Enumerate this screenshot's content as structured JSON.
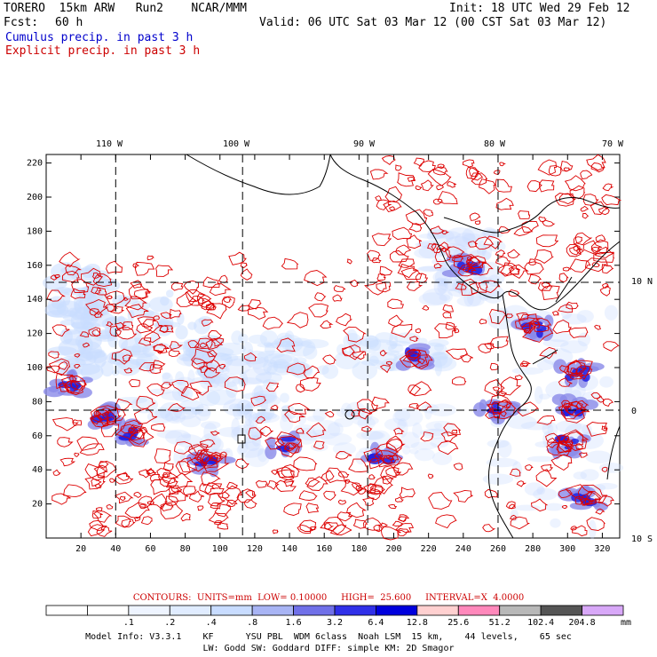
{
  "header": {
    "model": "TORERO  15km ARW   Run2    NCAR/MMM",
    "init": "Init: 18 UTC Wed 29 Feb 12",
    "fcst_label": "Fcst:",
    "fcst_value": "60 h",
    "valid": "Valid: 06 UTC Sat 03 Mar 12 (00 CST Sat 03 Mar 12)",
    "field1": "Cumulus precip. in past 3 h",
    "field2": "Explicit precip. in past 3 h"
  },
  "map": {
    "top_lon_labels": [
      "110 W",
      "100 W",
      "90 W",
      "80 W",
      "70 W"
    ],
    "right_lat_labels": [
      "10 N",
      "0",
      "10 S"
    ],
    "y_ticks": [
      "220",
      "200",
      "180",
      "160",
      "140",
      "120",
      "100",
      "80",
      "60",
      "40",
      "20"
    ],
    "x_ticks": [
      "20",
      "40",
      "60",
      "80",
      "100",
      "120",
      "140",
      "160",
      "180",
      "200",
      "220",
      "240",
      "260",
      "280",
      "300",
      "320"
    ],
    "grid_x": [
      40,
      113,
      185,
      260
    ],
    "grid_y": [
      150,
      75
    ],
    "grid_extent": {
      "x": [
        0,
        330
      ],
      "y": [
        0,
        225
      ]
    },
    "colors": {
      "explicit_contour": "#dd0000",
      "cumulus_light": "#c8dcff",
      "cumulus_mid": "#8a8ae8",
      "cumulus_dark": "#2020e0"
    }
  },
  "contours": {
    "units_line": "CONTOURS:  UNITS=mm  LOW= 0.10000     HIGH=  25.600     INTERVAL=X  4.0000"
  },
  "colorbar": {
    "labels": [
      ".1",
      ".2",
      ".4",
      ".8",
      "1.6",
      "3.2",
      "6.4",
      "12.8",
      "25.6",
      "51.2",
      "102.4",
      "204.8"
    ],
    "unit": "mm",
    "colors": [
      "#ffffff",
      "#ffffff",
      "#eef4ff",
      "#e0ecff",
      "#c8dcff",
      "#a8b4f4",
      "#7070e8",
      "#3030e8",
      "#0000dd",
      "#ffd0d0",
      "#ff88bb",
      "#b8b8b8",
      "#555555",
      "#d8a8f8"
    ]
  },
  "footer": {
    "line1": "Model Info: V3.3.1    KF      YSU PBL  WDM 6class  Noah LSM  15 km,    44 levels,    65 sec",
    "line2": "LW: Godd SW: Goddard DIFF: simple KM: 2D Smagor"
  }
}
